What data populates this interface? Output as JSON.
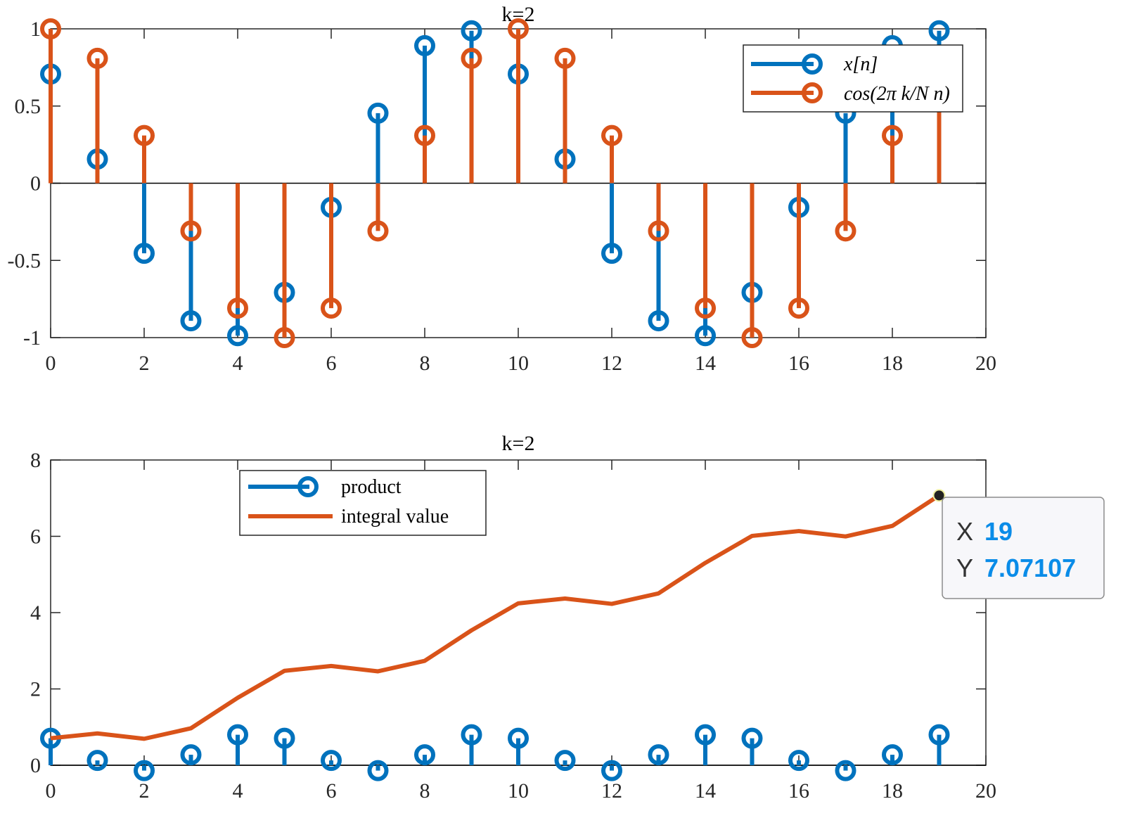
{
  "colors": {
    "blue": "#0072BD",
    "orange": "#D95319",
    "axis": "#262626",
    "tip_value": "#0a8ce8"
  },
  "chart_data": [
    {
      "type": "stem",
      "title": "k=2",
      "xlabel": "",
      "ylabel": "",
      "xlim": [
        0,
        20
      ],
      "ylim": [
        -1,
        1
      ],
      "xticks": [
        "0",
        "2",
        "4",
        "6",
        "8",
        "10",
        "12",
        "14",
        "16",
        "18",
        "20"
      ],
      "yticks": [
        "-1",
        "-0.5",
        "0",
        "0.5",
        "1"
      ],
      "legend_position": "top-right",
      "x": [
        0,
        1,
        2,
        3,
        4,
        5,
        6,
        7,
        8,
        9,
        10,
        11,
        12,
        13,
        14,
        15,
        16,
        17,
        18,
        19
      ],
      "series": [
        {
          "name": "x[n]",
          "style": "stem",
          "color": "#0072BD",
          "values": [
            0.7071,
            0.1564,
            -0.454,
            -0.891,
            -0.9877,
            -0.7071,
            -0.1564,
            0.454,
            0.891,
            0.9877,
            0.7071,
            0.1564,
            -0.454,
            -0.891,
            -0.9877,
            -0.7071,
            -0.1564,
            0.454,
            0.891,
            0.9877
          ]
        },
        {
          "name": "cos(2π k/N n)",
          "style": "stem",
          "color": "#D95319",
          "values": [
            1,
            0.809,
            0.309,
            -0.309,
            -0.809,
            -1,
            -0.809,
            -0.309,
            0.309,
            0.809,
            1,
            0.809,
            0.309,
            -0.309,
            -0.809,
            -1,
            -0.809,
            -0.309,
            0.309,
            0.809
          ]
        }
      ]
    },
    {
      "type": "stem+line",
      "title": "k=2",
      "xlabel": "",
      "ylabel": "",
      "xlim": [
        0,
        20
      ],
      "ylim": [
        0,
        8
      ],
      "xticks": [
        "0",
        "2",
        "4",
        "6",
        "8",
        "10",
        "12",
        "14",
        "16",
        "18",
        "20"
      ],
      "yticks": [
        "0",
        "2",
        "4",
        "6",
        "8"
      ],
      "legend_position": "top-left",
      "x": [
        0,
        1,
        2,
        3,
        4,
        5,
        6,
        7,
        8,
        9,
        10,
        11,
        12,
        13,
        14,
        15,
        16,
        17,
        18,
        19
      ],
      "series": [
        {
          "name": "product",
          "style": "stem",
          "color": "#0072BD",
          "values": [
            0.7071,
            0.1266,
            -0.1403,
            0.2753,
            0.7991,
            0.7071,
            0.1266,
            -0.1403,
            0.2753,
            0.7991,
            0.7071,
            0.1266,
            -0.1403,
            0.2753,
            0.7991,
            0.7071,
            0.1266,
            -0.1403,
            0.2753,
            0.7991
          ]
        },
        {
          "name": "integral value",
          "style": "line",
          "color": "#D95319",
          "values": [
            0.7071,
            0.8337,
            0.6934,
            0.9687,
            1.7678,
            2.4749,
            2.6015,
            2.4612,
            2.7365,
            3.5356,
            4.2427,
            4.3693,
            4.229,
            4.5043,
            5.3034,
            6.0105,
            6.1371,
            5.9968,
            6.2721,
            7.07107
          ]
        }
      ],
      "datatip": {
        "x_label": "X",
        "x_value": "19",
        "y_label": "Y",
        "y_value": "7.07107"
      }
    }
  ]
}
